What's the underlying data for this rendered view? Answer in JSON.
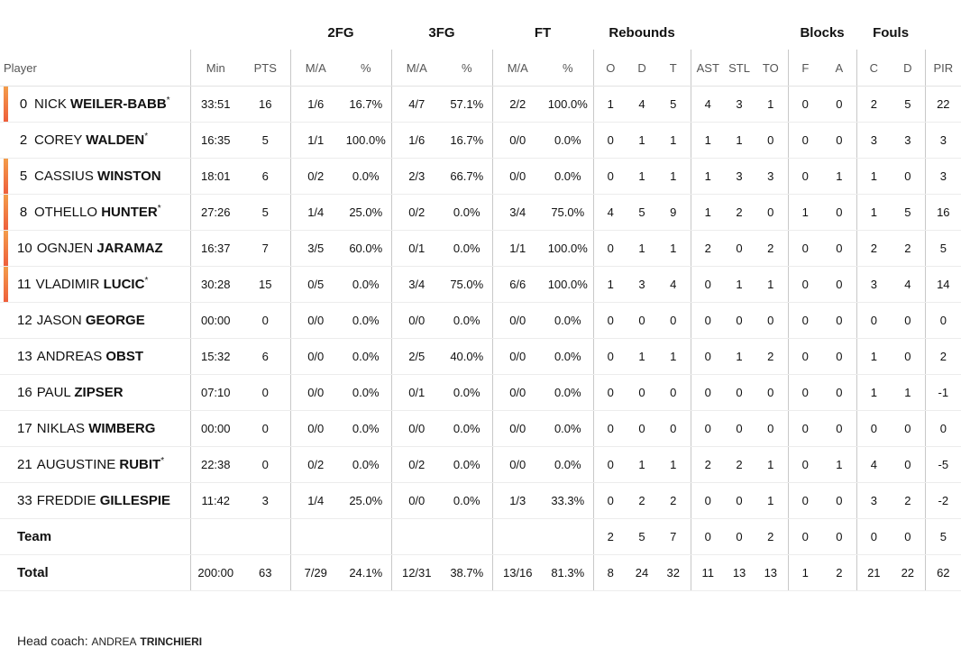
{
  "groups": {
    "fg2": "2FG",
    "fg3": "3FG",
    "ft": "FT",
    "rebounds": "Rebounds",
    "blocks": "Blocks",
    "fouls": "Fouls"
  },
  "columns": {
    "player": "Player",
    "min": "Min",
    "pts": "PTS",
    "fg2_ma": "M/A",
    "fg2_pct": "%",
    "fg3_ma": "M/A",
    "fg3_pct": "%",
    "ft_ma": "M/A",
    "ft_pct": "%",
    "reb_o": "O",
    "reb_d": "D",
    "reb_t": "T",
    "ast": "AST",
    "stl": "STL",
    "to": "TO",
    "blk_f": "F",
    "blk_a": "A",
    "foul_c": "C",
    "foul_d": "D",
    "pir": "PIR"
  },
  "players": [
    {
      "number": "0",
      "first": "NICK",
      "last": "WEILER-BABB",
      "mark": "*",
      "starter": true,
      "min": "33:51",
      "pts": "16",
      "fg2_ma": "1/6",
      "fg2_pct": "16.7%",
      "fg3_ma": "4/7",
      "fg3_pct": "57.1%",
      "ft_ma": "2/2",
      "ft_pct": "100.0%",
      "reb_o": "1",
      "reb_d": "4",
      "reb_t": "5",
      "ast": "4",
      "stl": "3",
      "to": "1",
      "blk_f": "0",
      "blk_a": "0",
      "foul_c": "2",
      "foul_d": "5",
      "pir": "22"
    },
    {
      "number": "2",
      "first": "COREY",
      "last": "WALDEN",
      "mark": "*",
      "starter": false,
      "min": "16:35",
      "pts": "5",
      "fg2_ma": "1/1",
      "fg2_pct": "100.0%",
      "fg3_ma": "1/6",
      "fg3_pct": "16.7%",
      "ft_ma": "0/0",
      "ft_pct": "0.0%",
      "reb_o": "0",
      "reb_d": "1",
      "reb_t": "1",
      "ast": "1",
      "stl": "1",
      "to": "0",
      "blk_f": "0",
      "blk_a": "0",
      "foul_c": "3",
      "foul_d": "3",
      "pir": "3"
    },
    {
      "number": "5",
      "first": "CASSIUS",
      "last": "WINSTON",
      "mark": "",
      "starter": true,
      "min": "18:01",
      "pts": "6",
      "fg2_ma": "0/2",
      "fg2_pct": "0.0%",
      "fg3_ma": "2/3",
      "fg3_pct": "66.7%",
      "ft_ma": "0/0",
      "ft_pct": "0.0%",
      "reb_o": "0",
      "reb_d": "1",
      "reb_t": "1",
      "ast": "1",
      "stl": "3",
      "to": "3",
      "blk_f": "0",
      "blk_a": "1",
      "foul_c": "1",
      "foul_d": "0",
      "pir": "3"
    },
    {
      "number": "8",
      "first": "OTHELLO",
      "last": "HUNTER",
      "mark": "*",
      "starter": true,
      "min": "27:26",
      "pts": "5",
      "fg2_ma": "1/4",
      "fg2_pct": "25.0%",
      "fg3_ma": "0/2",
      "fg3_pct": "0.0%",
      "ft_ma": "3/4",
      "ft_pct": "75.0%",
      "reb_o": "4",
      "reb_d": "5",
      "reb_t": "9",
      "ast": "1",
      "stl": "2",
      "to": "0",
      "blk_f": "1",
      "blk_a": "0",
      "foul_c": "1",
      "foul_d": "5",
      "pir": "16"
    },
    {
      "number": "10",
      "first": "OGNJEN",
      "last": "JARAMAZ",
      "mark": "",
      "starter": true,
      "min": "16:37",
      "pts": "7",
      "fg2_ma": "3/5",
      "fg2_pct": "60.0%",
      "fg3_ma": "0/1",
      "fg3_pct": "0.0%",
      "ft_ma": "1/1",
      "ft_pct": "100.0%",
      "reb_o": "0",
      "reb_d": "1",
      "reb_t": "1",
      "ast": "2",
      "stl": "0",
      "to": "2",
      "blk_f": "0",
      "blk_a": "0",
      "foul_c": "2",
      "foul_d": "2",
      "pir": "5"
    },
    {
      "number": "11",
      "first": "VLADIMIR",
      "last": "LUCIC",
      "mark": "*",
      "starter": true,
      "min": "30:28",
      "pts": "15",
      "fg2_ma": "0/5",
      "fg2_pct": "0.0%",
      "fg3_ma": "3/4",
      "fg3_pct": "75.0%",
      "ft_ma": "6/6",
      "ft_pct": "100.0%",
      "reb_o": "1",
      "reb_d": "3",
      "reb_t": "4",
      "ast": "0",
      "stl": "1",
      "to": "1",
      "blk_f": "0",
      "blk_a": "0",
      "foul_c": "3",
      "foul_d": "4",
      "pir": "14"
    },
    {
      "number": "12",
      "first": "JASON",
      "last": "GEORGE",
      "mark": "",
      "starter": false,
      "min": "00:00",
      "pts": "0",
      "fg2_ma": "0/0",
      "fg2_pct": "0.0%",
      "fg3_ma": "0/0",
      "fg3_pct": "0.0%",
      "ft_ma": "0/0",
      "ft_pct": "0.0%",
      "reb_o": "0",
      "reb_d": "0",
      "reb_t": "0",
      "ast": "0",
      "stl": "0",
      "to": "0",
      "blk_f": "0",
      "blk_a": "0",
      "foul_c": "0",
      "foul_d": "0",
      "pir": "0"
    },
    {
      "number": "13",
      "first": "ANDREAS",
      "last": "OBST",
      "mark": "",
      "starter": false,
      "min": "15:32",
      "pts": "6",
      "fg2_ma": "0/0",
      "fg2_pct": "0.0%",
      "fg3_ma": "2/5",
      "fg3_pct": "40.0%",
      "ft_ma": "0/0",
      "ft_pct": "0.0%",
      "reb_o": "0",
      "reb_d": "1",
      "reb_t": "1",
      "ast": "0",
      "stl": "1",
      "to": "2",
      "blk_f": "0",
      "blk_a": "0",
      "foul_c": "1",
      "foul_d": "0",
      "pir": "2"
    },
    {
      "number": "16",
      "first": "PAUL",
      "last": "ZIPSER",
      "mark": "",
      "starter": false,
      "min": "07:10",
      "pts": "0",
      "fg2_ma": "0/0",
      "fg2_pct": "0.0%",
      "fg3_ma": "0/1",
      "fg3_pct": "0.0%",
      "ft_ma": "0/0",
      "ft_pct": "0.0%",
      "reb_o": "0",
      "reb_d": "0",
      "reb_t": "0",
      "ast": "0",
      "stl": "0",
      "to": "0",
      "blk_f": "0",
      "blk_a": "0",
      "foul_c": "1",
      "foul_d": "1",
      "pir": "-1"
    },
    {
      "number": "17",
      "first": "NIKLAS",
      "last": "WIMBERG",
      "mark": "",
      "starter": false,
      "min": "00:00",
      "pts": "0",
      "fg2_ma": "0/0",
      "fg2_pct": "0.0%",
      "fg3_ma": "0/0",
      "fg3_pct": "0.0%",
      "ft_ma": "0/0",
      "ft_pct": "0.0%",
      "reb_o": "0",
      "reb_d": "0",
      "reb_t": "0",
      "ast": "0",
      "stl": "0",
      "to": "0",
      "blk_f": "0",
      "blk_a": "0",
      "foul_c": "0",
      "foul_d": "0",
      "pir": "0"
    },
    {
      "number": "21",
      "first": "AUGUSTINE",
      "last": "RUBIT",
      "mark": "*",
      "starter": false,
      "min": "22:38",
      "pts": "0",
      "fg2_ma": "0/2",
      "fg2_pct": "0.0%",
      "fg3_ma": "0/2",
      "fg3_pct": "0.0%",
      "ft_ma": "0/0",
      "ft_pct": "0.0%",
      "reb_o": "0",
      "reb_d": "1",
      "reb_t": "1",
      "ast": "2",
      "stl": "2",
      "to": "1",
      "blk_f": "0",
      "blk_a": "1",
      "foul_c": "4",
      "foul_d": "0",
      "pir": "-5"
    },
    {
      "number": "33",
      "first": "FREDDIE",
      "last": "GILLESPIE",
      "mark": "",
      "starter": false,
      "min": "11:42",
      "pts": "3",
      "fg2_ma": "1/4",
      "fg2_pct": "25.0%",
      "fg3_ma": "0/0",
      "fg3_pct": "0.0%",
      "ft_ma": "1/3",
      "ft_pct": "33.3%",
      "reb_o": "0",
      "reb_d": "2",
      "reb_t": "2",
      "ast": "0",
      "stl": "0",
      "to": "1",
      "blk_f": "0",
      "blk_a": "0",
      "foul_c": "3",
      "foul_d": "2",
      "pir": "-2"
    }
  ],
  "team": {
    "label": "Team",
    "min": "",
    "pts": "",
    "fg2_ma": "",
    "fg2_pct": "",
    "fg3_ma": "",
    "fg3_pct": "",
    "ft_ma": "",
    "ft_pct": "",
    "reb_o": "2",
    "reb_d": "5",
    "reb_t": "7",
    "ast": "0",
    "stl": "0",
    "to": "2",
    "blk_f": "0",
    "blk_a": "0",
    "foul_c": "0",
    "foul_d": "0",
    "pir": "5"
  },
  "total": {
    "label": "Total",
    "min": "200:00",
    "pts": "63",
    "fg2_ma": "7/29",
    "fg2_pct": "24.1%",
    "fg3_ma": "12/31",
    "fg3_pct": "38.7%",
    "ft_ma": "13/16",
    "ft_pct": "81.3%",
    "reb_o": "8",
    "reb_d": "24",
    "reb_t": "32",
    "ast": "11",
    "stl": "13",
    "to": "13",
    "blk_f": "1",
    "blk_a": "2",
    "foul_c": "21",
    "foul_d": "22",
    "pir": "62"
  },
  "coach": {
    "label": "Head coach:",
    "first": "ANDREA",
    "last": "TRINCHIERI"
  },
  "colors": {
    "starter_bar_top": "#f39c4a",
    "starter_bar_bottom": "#ee5f3c"
  }
}
